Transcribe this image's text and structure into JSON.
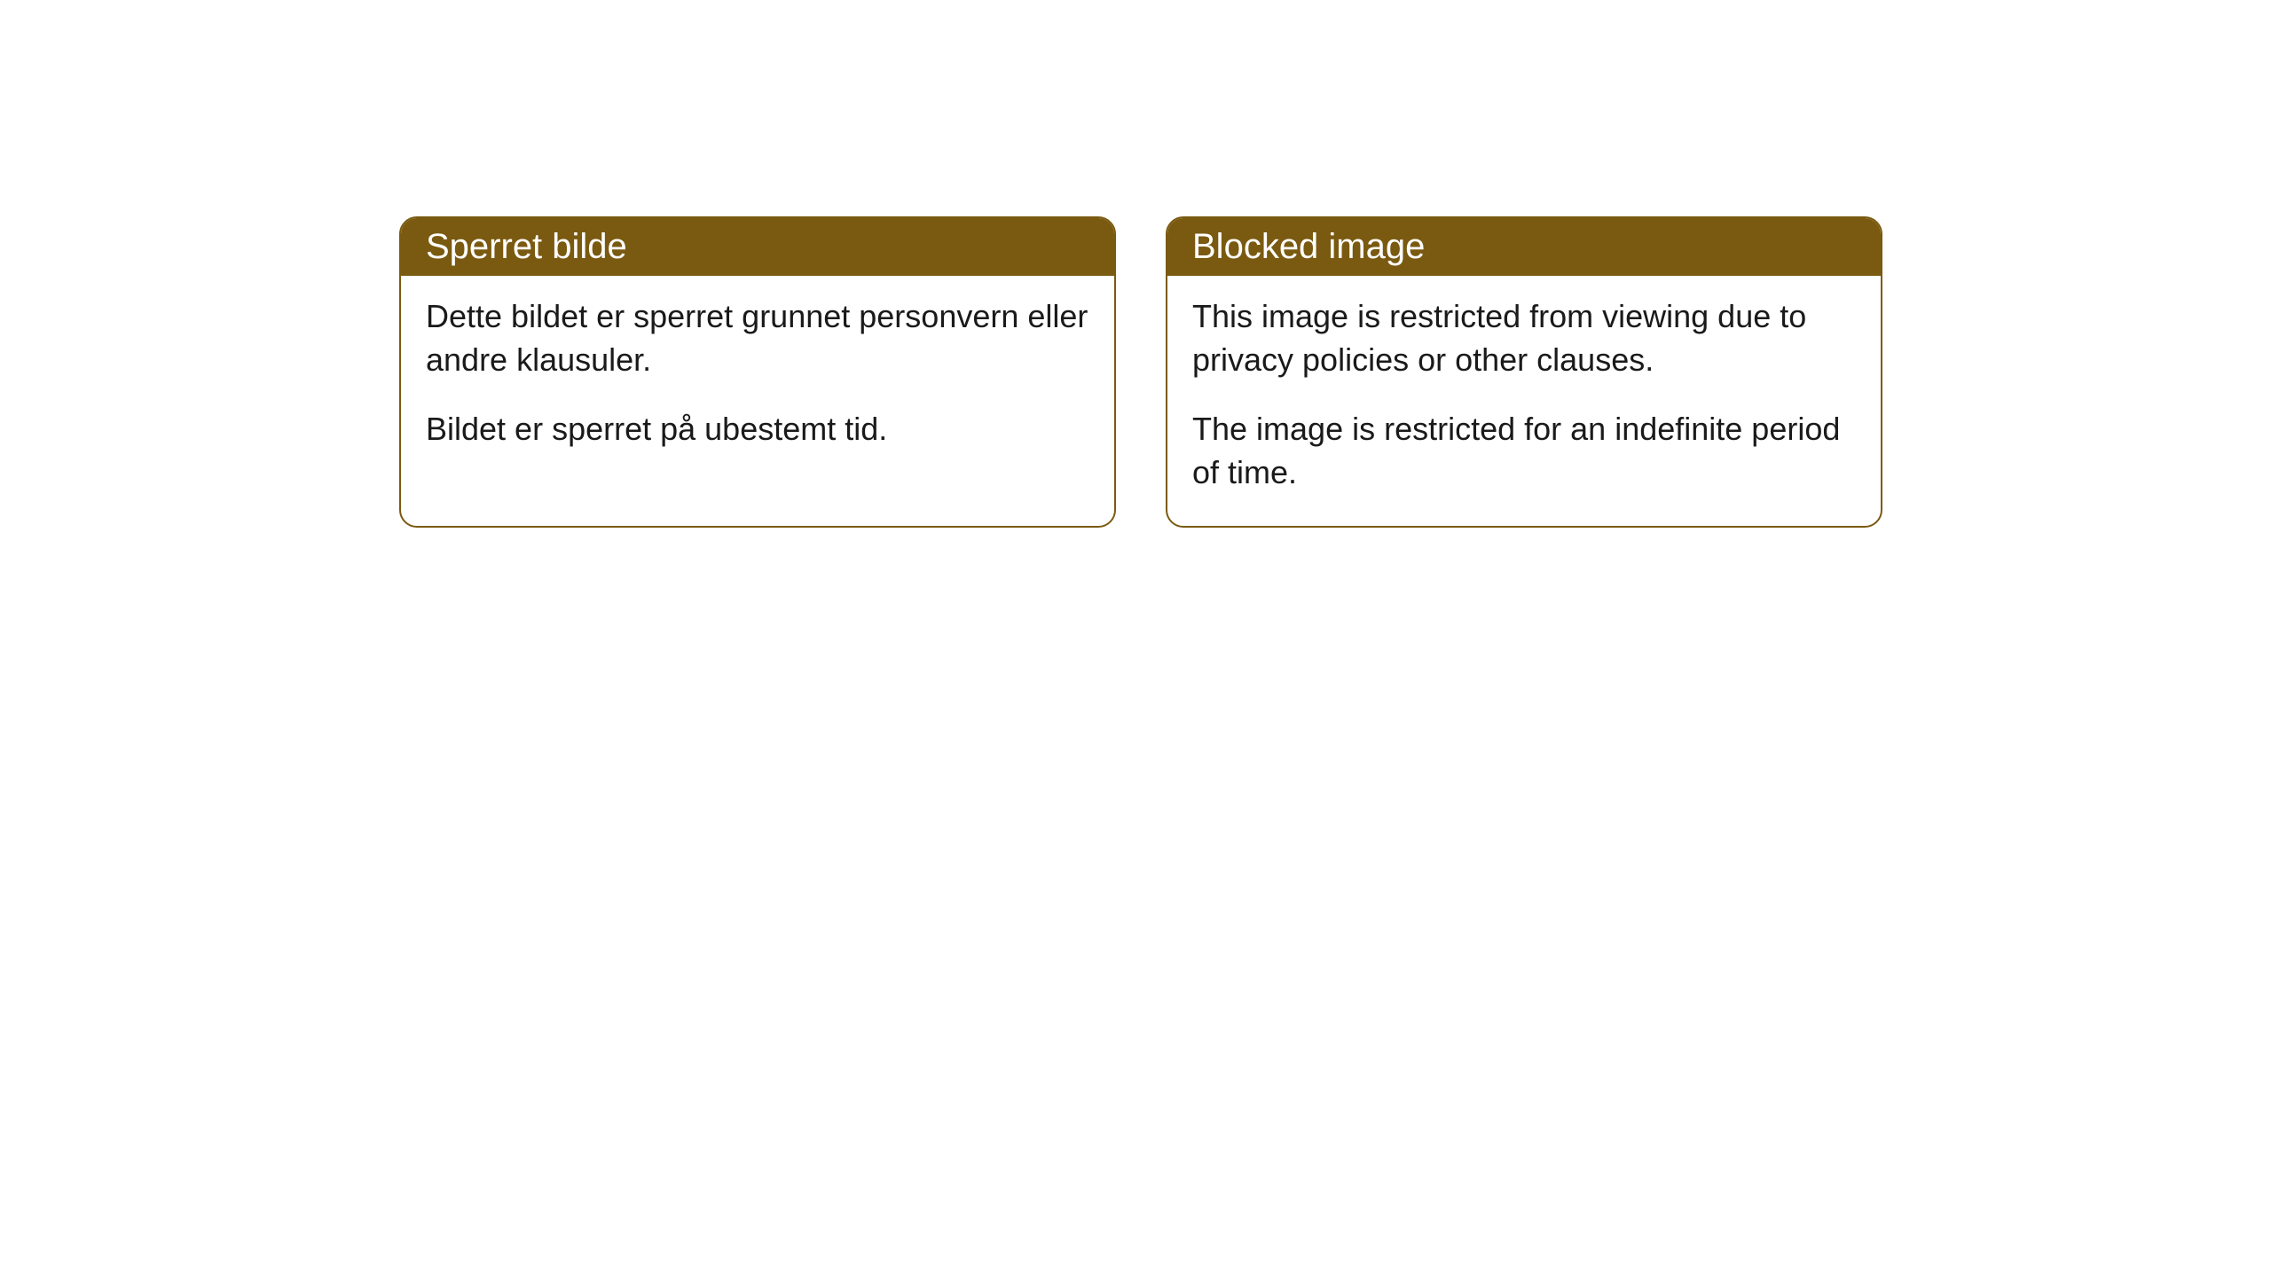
{
  "cards": [
    {
      "title": "Sperret bilde",
      "para1": "Dette bildet er sperret grunnet personvern eller andre klausuler.",
      "para2": "Bildet er sperret på ubestemt tid."
    },
    {
      "title": "Blocked image",
      "para1": "This image is restricted from viewing due to privacy policies or other clauses.",
      "para2": "The image is restricted for an indefinite period of time."
    }
  ],
  "styles": {
    "header_bg": "#7a5a10",
    "header_text_color": "#ffffff",
    "border_color": "#7a5a10",
    "body_text_color": "#1a1a1a",
    "background_color": "#ffffff",
    "border_radius": 20,
    "header_fontsize": 40,
    "body_fontsize": 36
  }
}
